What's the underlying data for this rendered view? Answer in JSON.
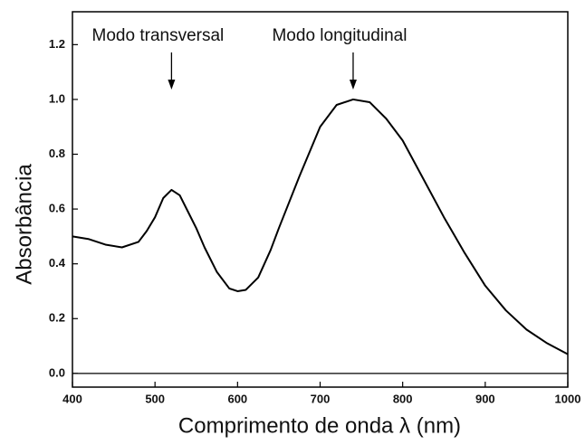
{
  "chart_data": {
    "type": "line",
    "x_label": "Comprimento de onda λ (nm)",
    "y_label": "Absorbância",
    "xlim": [
      400,
      1000
    ],
    "ylim": [
      -0.05,
      1.32
    ],
    "xticks": [
      400,
      500,
      600,
      700,
      800,
      900,
      1000
    ],
    "yticks": [
      {
        "value": 0,
        "label": "0.0"
      },
      0.2,
      0.4,
      0.6,
      0.8,
      {
        "value": 1,
        "label": "1.0"
      },
      1.2
    ],
    "zero_line": true,
    "series": [
      {
        "name": "Absorbância",
        "color": "#000000",
        "x": [
          400,
          420,
          440,
          460,
          480,
          490,
          500,
          510,
          520,
          530,
          540,
          550,
          560,
          575,
          590,
          600,
          610,
          625,
          640,
          650,
          675,
          700,
          720,
          740,
          760,
          780,
          800,
          825,
          850,
          875,
          900,
          925,
          950,
          975,
          1000
        ],
        "values": [
          0.5,
          0.49,
          0.47,
          0.46,
          0.48,
          0.52,
          0.57,
          0.64,
          0.67,
          0.65,
          0.59,
          0.53,
          0.46,
          0.37,
          0.31,
          0.3,
          0.305,
          0.35,
          0.45,
          0.53,
          0.72,
          0.9,
          0.98,
          1.0,
          0.99,
          0.93,
          0.85,
          0.71,
          0.57,
          0.44,
          0.32,
          0.23,
          0.16,
          0.11,
          0.07
        ]
      }
    ],
    "annotations": [
      {
        "text": "Modo transversal",
        "x": 520
      },
      {
        "text": "Modo longitudinal",
        "x": 740
      }
    ]
  }
}
